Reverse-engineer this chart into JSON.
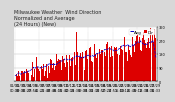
{
  "title": "Milwaukee Weather  Wind Direction\nNormalized and Average\n(24 Hours) (New)",
  "bg_color": "#d8d8d8",
  "plot_bg": "#ffffff",
  "bar_color": "#dd0000",
  "line_color": "#0000cc",
  "ylim": [
    0,
    360
  ],
  "yticks": [
    0,
    90,
    180,
    270,
    360
  ],
  "n_points": 480,
  "seed": 42,
  "title_fontsize": 3.5,
  "tick_fontsize": 2.5,
  "legend_fontsize": 3.0
}
